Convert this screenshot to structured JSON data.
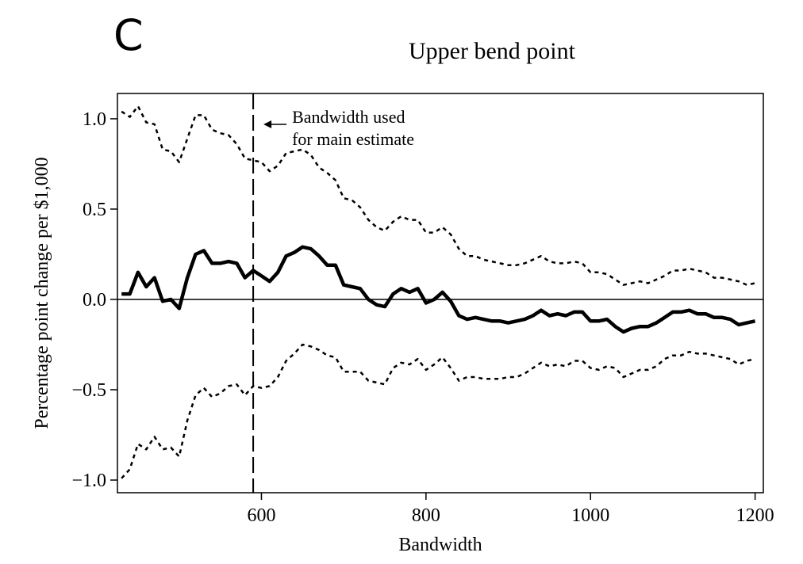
{
  "panel_letter": "C",
  "chart_data": {
    "type": "line",
    "title": "Upper bend point",
    "xlabel": "Bandwidth",
    "ylabel": "Percentage point change per $1,000",
    "xlim": [
      425,
      1210
    ],
    "ylim": [
      -1.07,
      1.14
    ],
    "xticks": [
      600,
      800,
      1000,
      1200
    ],
    "xtick_labels": [
      "600",
      "800",
      "1000",
      "1200"
    ],
    "yticks": [
      1.0,
      0.5,
      0.0,
      -0.5,
      -1.0
    ],
    "ytick_labels": [
      "1.0",
      "0.5",
      "0.0",
      "−0.5",
      "−1.0"
    ],
    "grid": false,
    "reference_line_y": 0,
    "vertical_marker": {
      "x": 590,
      "text_line1": "Bandwidth used",
      "text_line2": "for main estimate"
    },
    "x": [
      430,
      440,
      450,
      460,
      470,
      480,
      490,
      500,
      510,
      520,
      530,
      540,
      550,
      560,
      570,
      580,
      590,
      600,
      610,
      620,
      630,
      640,
      650,
      660,
      670,
      680,
      690,
      700,
      710,
      720,
      730,
      740,
      750,
      760,
      770,
      780,
      790,
      800,
      810,
      820,
      830,
      840,
      850,
      860,
      870,
      880,
      890,
      900,
      910,
      920,
      930,
      940,
      950,
      960,
      970,
      980,
      990,
      1000,
      1010,
      1020,
      1030,
      1040,
      1050,
      1060,
      1070,
      1080,
      1090,
      1100,
      1110,
      1120,
      1130,
      1140,
      1150,
      1160,
      1170,
      1180,
      1190,
      1200
    ],
    "series": [
      {
        "style": "solid-thick",
        "values": [
          0.03,
          0.03,
          0.15,
          0.07,
          0.12,
          -0.01,
          0.0,
          -0.05,
          0.12,
          0.25,
          0.27,
          0.2,
          0.2,
          0.21,
          0.2,
          0.12,
          0.16,
          0.13,
          0.1,
          0.15,
          0.24,
          0.26,
          0.29,
          0.28,
          0.24,
          0.19,
          0.19,
          0.08,
          0.07,
          0.06,
          0.0,
          -0.03,
          -0.04,
          0.03,
          0.06,
          0.04,
          0.06,
          -0.02,
          0.0,
          0.04,
          -0.01,
          -0.09,
          -0.11,
          -0.1,
          -0.11,
          -0.12,
          -0.12,
          -0.13,
          -0.12,
          -0.11,
          -0.09,
          -0.06,
          -0.09,
          -0.08,
          -0.09,
          -0.07,
          -0.07,
          -0.12,
          -0.12,
          -0.11,
          -0.15,
          -0.18,
          -0.16,
          -0.15,
          -0.15,
          -0.13,
          -0.1,
          -0.07,
          -0.07,
          -0.06,
          -0.08,
          -0.08,
          -0.1,
          -0.1,
          -0.11,
          -0.14,
          -0.13,
          -0.12
        ]
      },
      {
        "style": "dotted-upper",
        "values": [
          1.04,
          1.01,
          1.07,
          0.98,
          0.97,
          0.83,
          0.82,
          0.76,
          0.89,
          1.02,
          1.02,
          0.94,
          0.92,
          0.91,
          0.86,
          0.78,
          0.77,
          0.76,
          0.71,
          0.74,
          0.81,
          0.82,
          0.83,
          0.8,
          0.73,
          0.7,
          0.66,
          0.56,
          0.55,
          0.51,
          0.44,
          0.4,
          0.38,
          0.43,
          0.46,
          0.44,
          0.44,
          0.37,
          0.37,
          0.4,
          0.36,
          0.28,
          0.24,
          0.24,
          0.22,
          0.21,
          0.2,
          0.19,
          0.19,
          0.2,
          0.22,
          0.24,
          0.21,
          0.2,
          0.2,
          0.21,
          0.2,
          0.15,
          0.15,
          0.14,
          0.11,
          0.08,
          0.09,
          0.1,
          0.09,
          0.11,
          0.13,
          0.16,
          0.16,
          0.17,
          0.16,
          0.15,
          0.12,
          0.12,
          0.11,
          0.1,
          0.08,
          0.09
        ]
      },
      {
        "style": "dotted-lower",
        "values": [
          -0.99,
          -0.94,
          -0.8,
          -0.83,
          -0.76,
          -0.83,
          -0.82,
          -0.87,
          -0.67,
          -0.53,
          -0.49,
          -0.54,
          -0.52,
          -0.48,
          -0.47,
          -0.53,
          -0.48,
          -0.49,
          -0.48,
          -0.43,
          -0.34,
          -0.3,
          -0.25,
          -0.26,
          -0.28,
          -0.31,
          -0.32,
          -0.4,
          -0.4,
          -0.4,
          -0.45,
          -0.46,
          -0.47,
          -0.38,
          -0.35,
          -0.36,
          -0.33,
          -0.39,
          -0.36,
          -0.32,
          -0.38,
          -0.45,
          -0.43,
          -0.43,
          -0.44,
          -0.44,
          -0.44,
          -0.43,
          -0.43,
          -0.41,
          -0.38,
          -0.35,
          -0.37,
          -0.36,
          -0.37,
          -0.34,
          -0.34,
          -0.38,
          -0.39,
          -0.37,
          -0.38,
          -0.43,
          -0.41,
          -0.39,
          -0.39,
          -0.37,
          -0.33,
          -0.31,
          -0.31,
          -0.29,
          -0.3,
          -0.3,
          -0.31,
          -0.32,
          -0.33,
          -0.36,
          -0.34,
          -0.33
        ]
      }
    ]
  }
}
